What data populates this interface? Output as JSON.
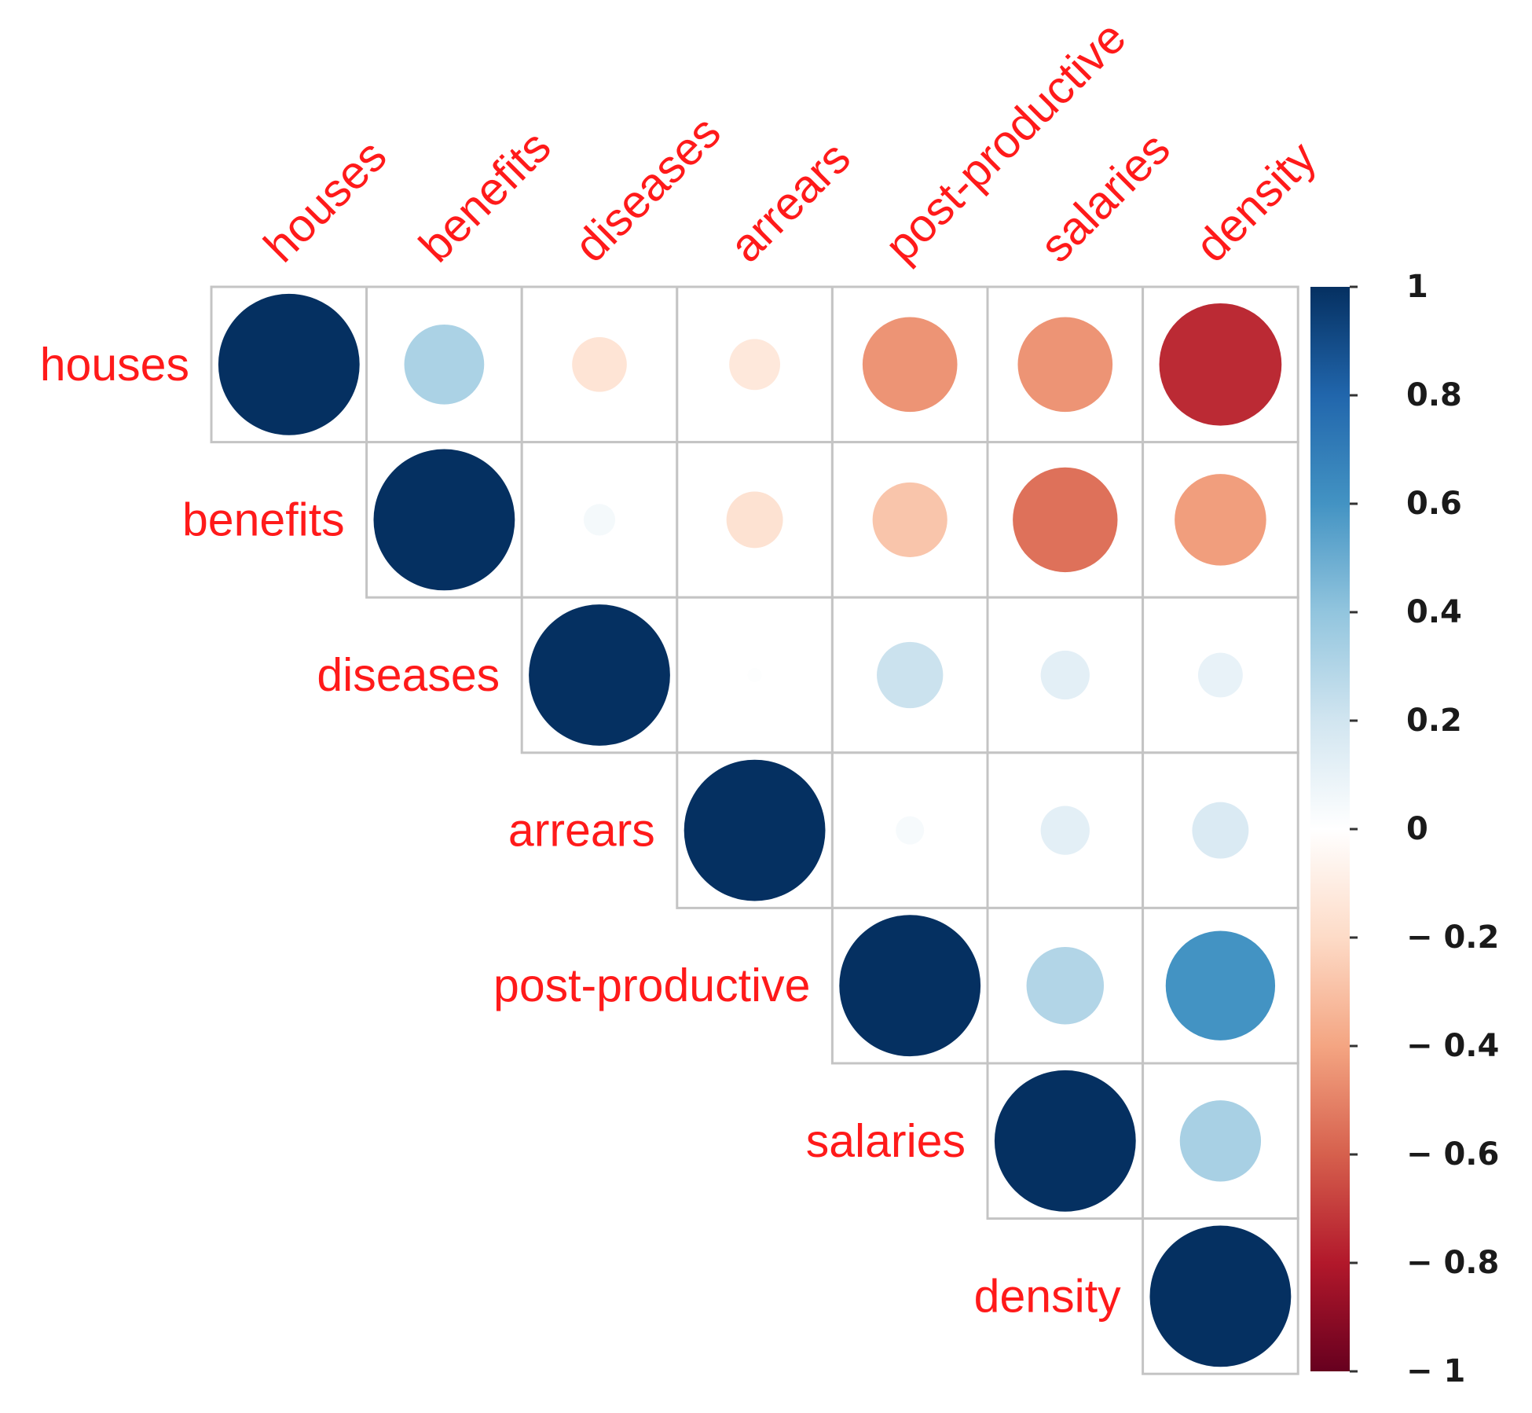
{
  "chart_data": {
    "type": "correlation-matrix",
    "layout": "upper-triangle",
    "shape": "circle",
    "variables": [
      "houses",
      "benefits",
      "diseases",
      "arrears",
      "post-productive",
      "salaries",
      "density"
    ],
    "matrix": [
      [
        1.0,
        0.32,
        -0.15,
        -0.13,
        -0.45,
        -0.45,
        -0.75
      ],
      [
        0.32,
        1.0,
        0.05,
        -0.16,
        -0.28,
        -0.55,
        -0.42
      ],
      [
        -0.15,
        0.05,
        1.0,
        0.01,
        0.22,
        0.12,
        0.1
      ],
      [
        -0.13,
        -0.16,
        0.01,
        1.0,
        0.04,
        0.12,
        0.16
      ],
      [
        -0.45,
        -0.28,
        0.22,
        0.04,
        1.0,
        0.3,
        0.6
      ],
      [
        -0.45,
        -0.55,
        0.12,
        0.12,
        0.3,
        1.0,
        0.33
      ],
      [
        -0.75,
        -0.42,
        0.1,
        0.16,
        0.6,
        0.33,
        1.0
      ]
    ],
    "colorbar": {
      "range": [
        -1,
        1
      ],
      "ticks": [
        1,
        0.8,
        0.6,
        0.4,
        0.2,
        0,
        -0.2,
        -0.4,
        -0.6,
        -0.8,
        -1
      ],
      "tick_labels": [
        "1",
        "0.8",
        "0.6",
        "0.4",
        "0.2",
        "0",
        "− 0.2",
        "− 0.4",
        "− 0.6",
        "− 0.8",
        "− 1"
      ],
      "colors": [
        "#67001f",
        "#b2182b",
        "#d6604d",
        "#f4a582",
        "#fddbc7",
        "#ffffff",
        "#d1e5f0",
        "#92c5de",
        "#4393c3",
        "#2166ac",
        "#053061"
      ]
    },
    "label_color": "#ff1a1a"
  }
}
